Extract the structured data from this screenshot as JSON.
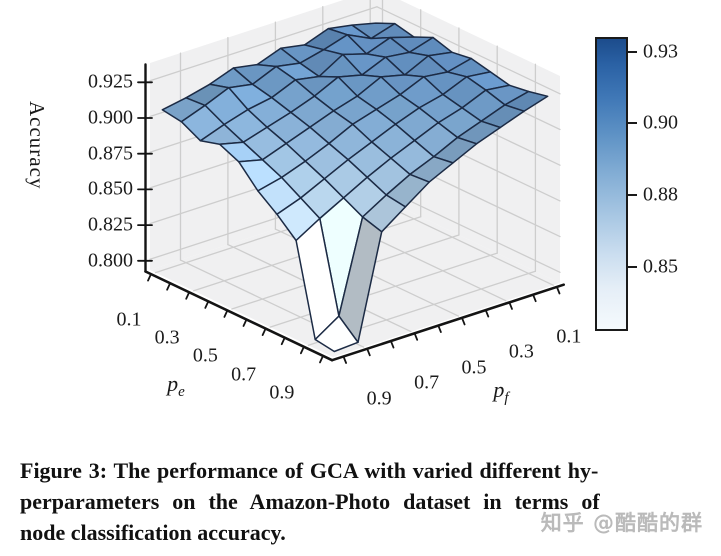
{
  "figure": {
    "caption_lines": [
      "Figure 3: The performance of GCA with varied different hy-",
      "perparameters on the Amazon-Photo dataset in terms of",
      "node classification accuracy."
    ]
  },
  "watermark": "知乎 @酷酷的群",
  "chart_data": {
    "type": "surface",
    "title": "",
    "xlabel": "p_e",
    "ylabel": "p_f",
    "zlabel": "Accuracy",
    "xlabel_base": "p",
    "xlabel_sub": "e",
    "ylabel_base": "p",
    "ylabel_sub": "f",
    "x_pe": [
      0.1,
      0.2,
      0.3,
      0.4,
      0.5,
      0.6,
      0.7,
      0.8,
      0.9,
      1.0
    ],
    "y_pf": [
      0.1,
      0.2,
      0.3,
      0.4,
      0.5,
      0.6,
      0.7,
      0.8,
      0.9,
      1.0
    ],
    "z_accuracy": [
      [
        0.917,
        0.921,
        0.924,
        0.918,
        0.921,
        0.915,
        0.918,
        0.912,
        0.908,
        0.905
      ],
      [
        0.923,
        0.918,
        0.926,
        0.921,
        0.917,
        0.92,
        0.913,
        0.916,
        0.909,
        0.903
      ],
      [
        0.92,
        0.925,
        0.919,
        0.924,
        0.914,
        0.917,
        0.91,
        0.907,
        0.902,
        0.896
      ],
      [
        0.926,
        0.921,
        0.923,
        0.916,
        0.92,
        0.912,
        0.906,
        0.901,
        0.896,
        0.9
      ],
      [
        0.922,
        0.925,
        0.917,
        0.921,
        0.913,
        0.908,
        0.902,
        0.896,
        0.89,
        0.894
      ],
      [
        0.924,
        0.92,
        0.922,
        0.915,
        0.91,
        0.905,
        0.897,
        0.89,
        0.884,
        0.88
      ],
      [
        0.921,
        0.923,
        0.916,
        0.912,
        0.906,
        0.899,
        0.892,
        0.884,
        0.876,
        0.87
      ],
      [
        0.918,
        0.92,
        0.913,
        0.908,
        0.901,
        0.894,
        0.886,
        0.877,
        0.868,
        0.858
      ],
      [
        0.92,
        0.916,
        0.91,
        0.904,
        0.896,
        0.889,
        0.88,
        0.87,
        0.806,
        0.795
      ],
      [
        0.923,
        0.918,
        0.912,
        0.906,
        0.898,
        0.89,
        0.878,
        0.866,
        0.794,
        0.793
      ]
    ],
    "zlim": [
      0.7925,
      0.9375
    ],
    "xticks": [
      0.1,
      0.3,
      0.5,
      0.7,
      0.9
    ],
    "yticks": [
      0.1,
      0.3,
      0.5,
      0.7,
      0.9
    ],
    "xtick_labels": [
      "0.1",
      "0.3",
      "0.5",
      "0.7",
      "0.9"
    ],
    "ytick_labels": [
      "0.1",
      "0.3",
      "0.5",
      "0.7",
      "0.9"
    ],
    "ztick_labels": [
      "0.800",
      "0.825",
      "0.850",
      "0.875",
      "0.900",
      "0.925"
    ],
    "colorbar": {
      "tick_labels": [
        "0.93",
        "0.90",
        "0.88",
        "0.85"
      ],
      "tick_positions": [
        0.05,
        0.297,
        0.545,
        0.793
      ],
      "top_color": "#1c4c8c",
      "bottom_color": "#f5fafd"
    },
    "colormap_stops": [
      [
        0.79,
        "#f5f9fc"
      ],
      [
        0.825,
        "#e4eef7"
      ],
      [
        0.85,
        "#d5e5f1"
      ],
      [
        0.87,
        "#bdd6ea"
      ],
      [
        0.885,
        "#a6c6e1"
      ],
      [
        0.9,
        "#8ab1d6"
      ],
      [
        0.912,
        "#74a0ca"
      ],
      [
        0.922,
        "#6390c1"
      ],
      [
        0.93,
        "#5583b6"
      ],
      [
        0.9375,
        "#49779f"
      ]
    ],
    "colors": {
      "edge": "#1c2b45",
      "pane": "#f0f0f1",
      "grid": "#cdcdcd",
      "axis": "#141414",
      "text": "#1c1c1c"
    },
    "legend_position": "right-colorbar",
    "grid": true
  }
}
